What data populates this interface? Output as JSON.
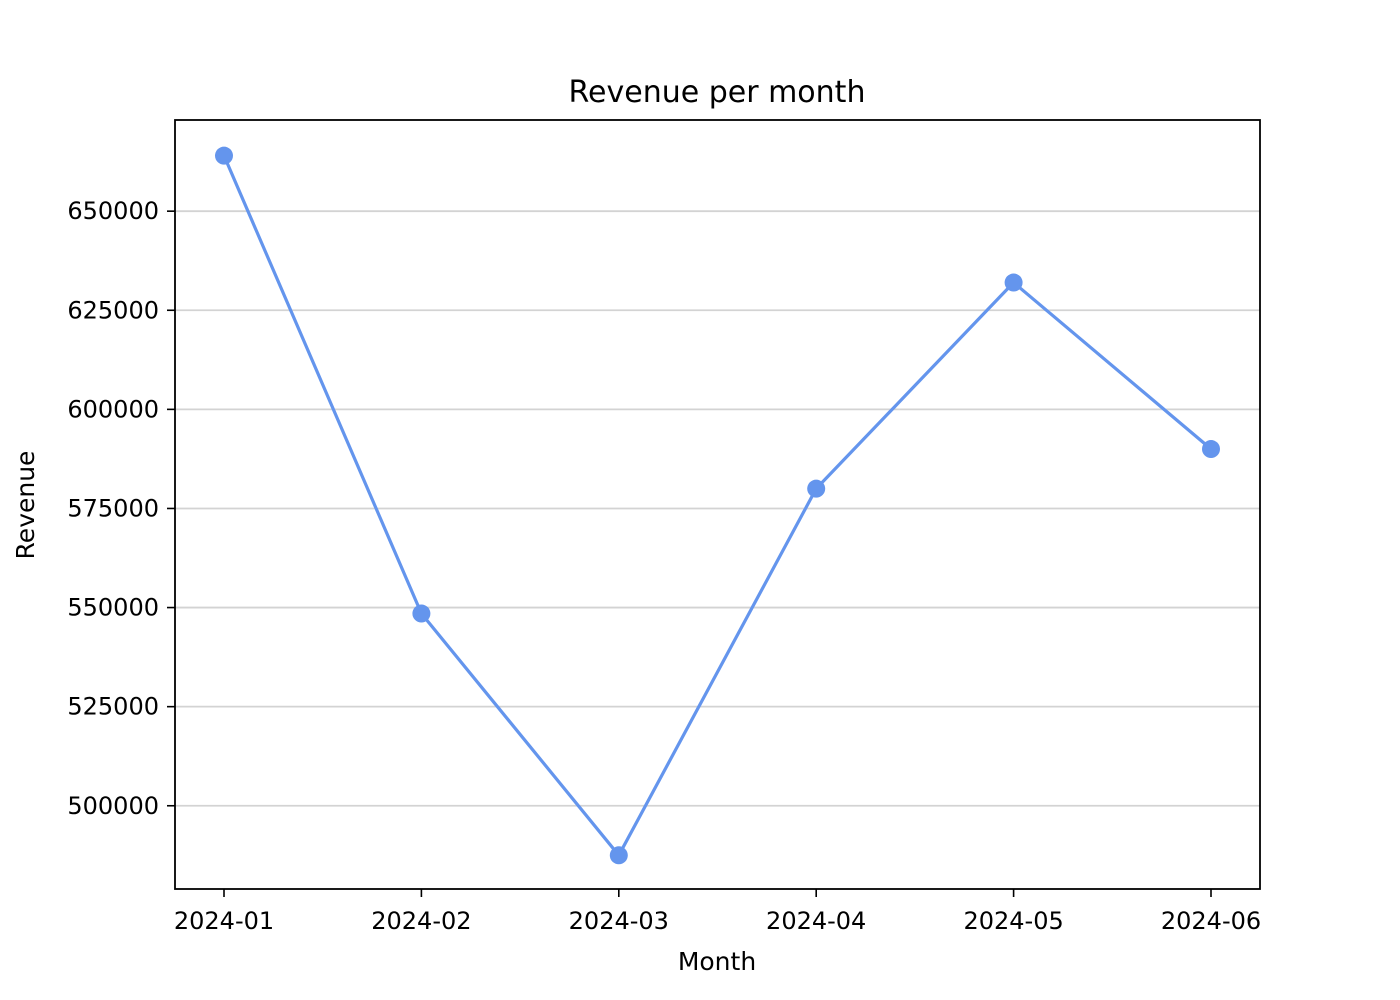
{
  "chart_data": {
    "type": "line",
    "title": "Revenue per month",
    "xlabel": "Month",
    "ylabel": "Revenue",
    "categories": [
      "2024-01",
      "2024-02",
      "2024-03",
      "2024-04",
      "2024-05",
      "2024-06"
    ],
    "series": [
      {
        "values": [
          664000,
          548500,
          487500,
          580000,
          632000,
          590000
        ],
        "color": "#6495ed",
        "marker": "circle"
      }
    ],
    "yticks": [
      500000,
      525000,
      550000,
      575000,
      600000,
      625000,
      650000
    ],
    "ylim": [
      479000,
      673000
    ],
    "grid": "horizontal",
    "legend": "none"
  }
}
